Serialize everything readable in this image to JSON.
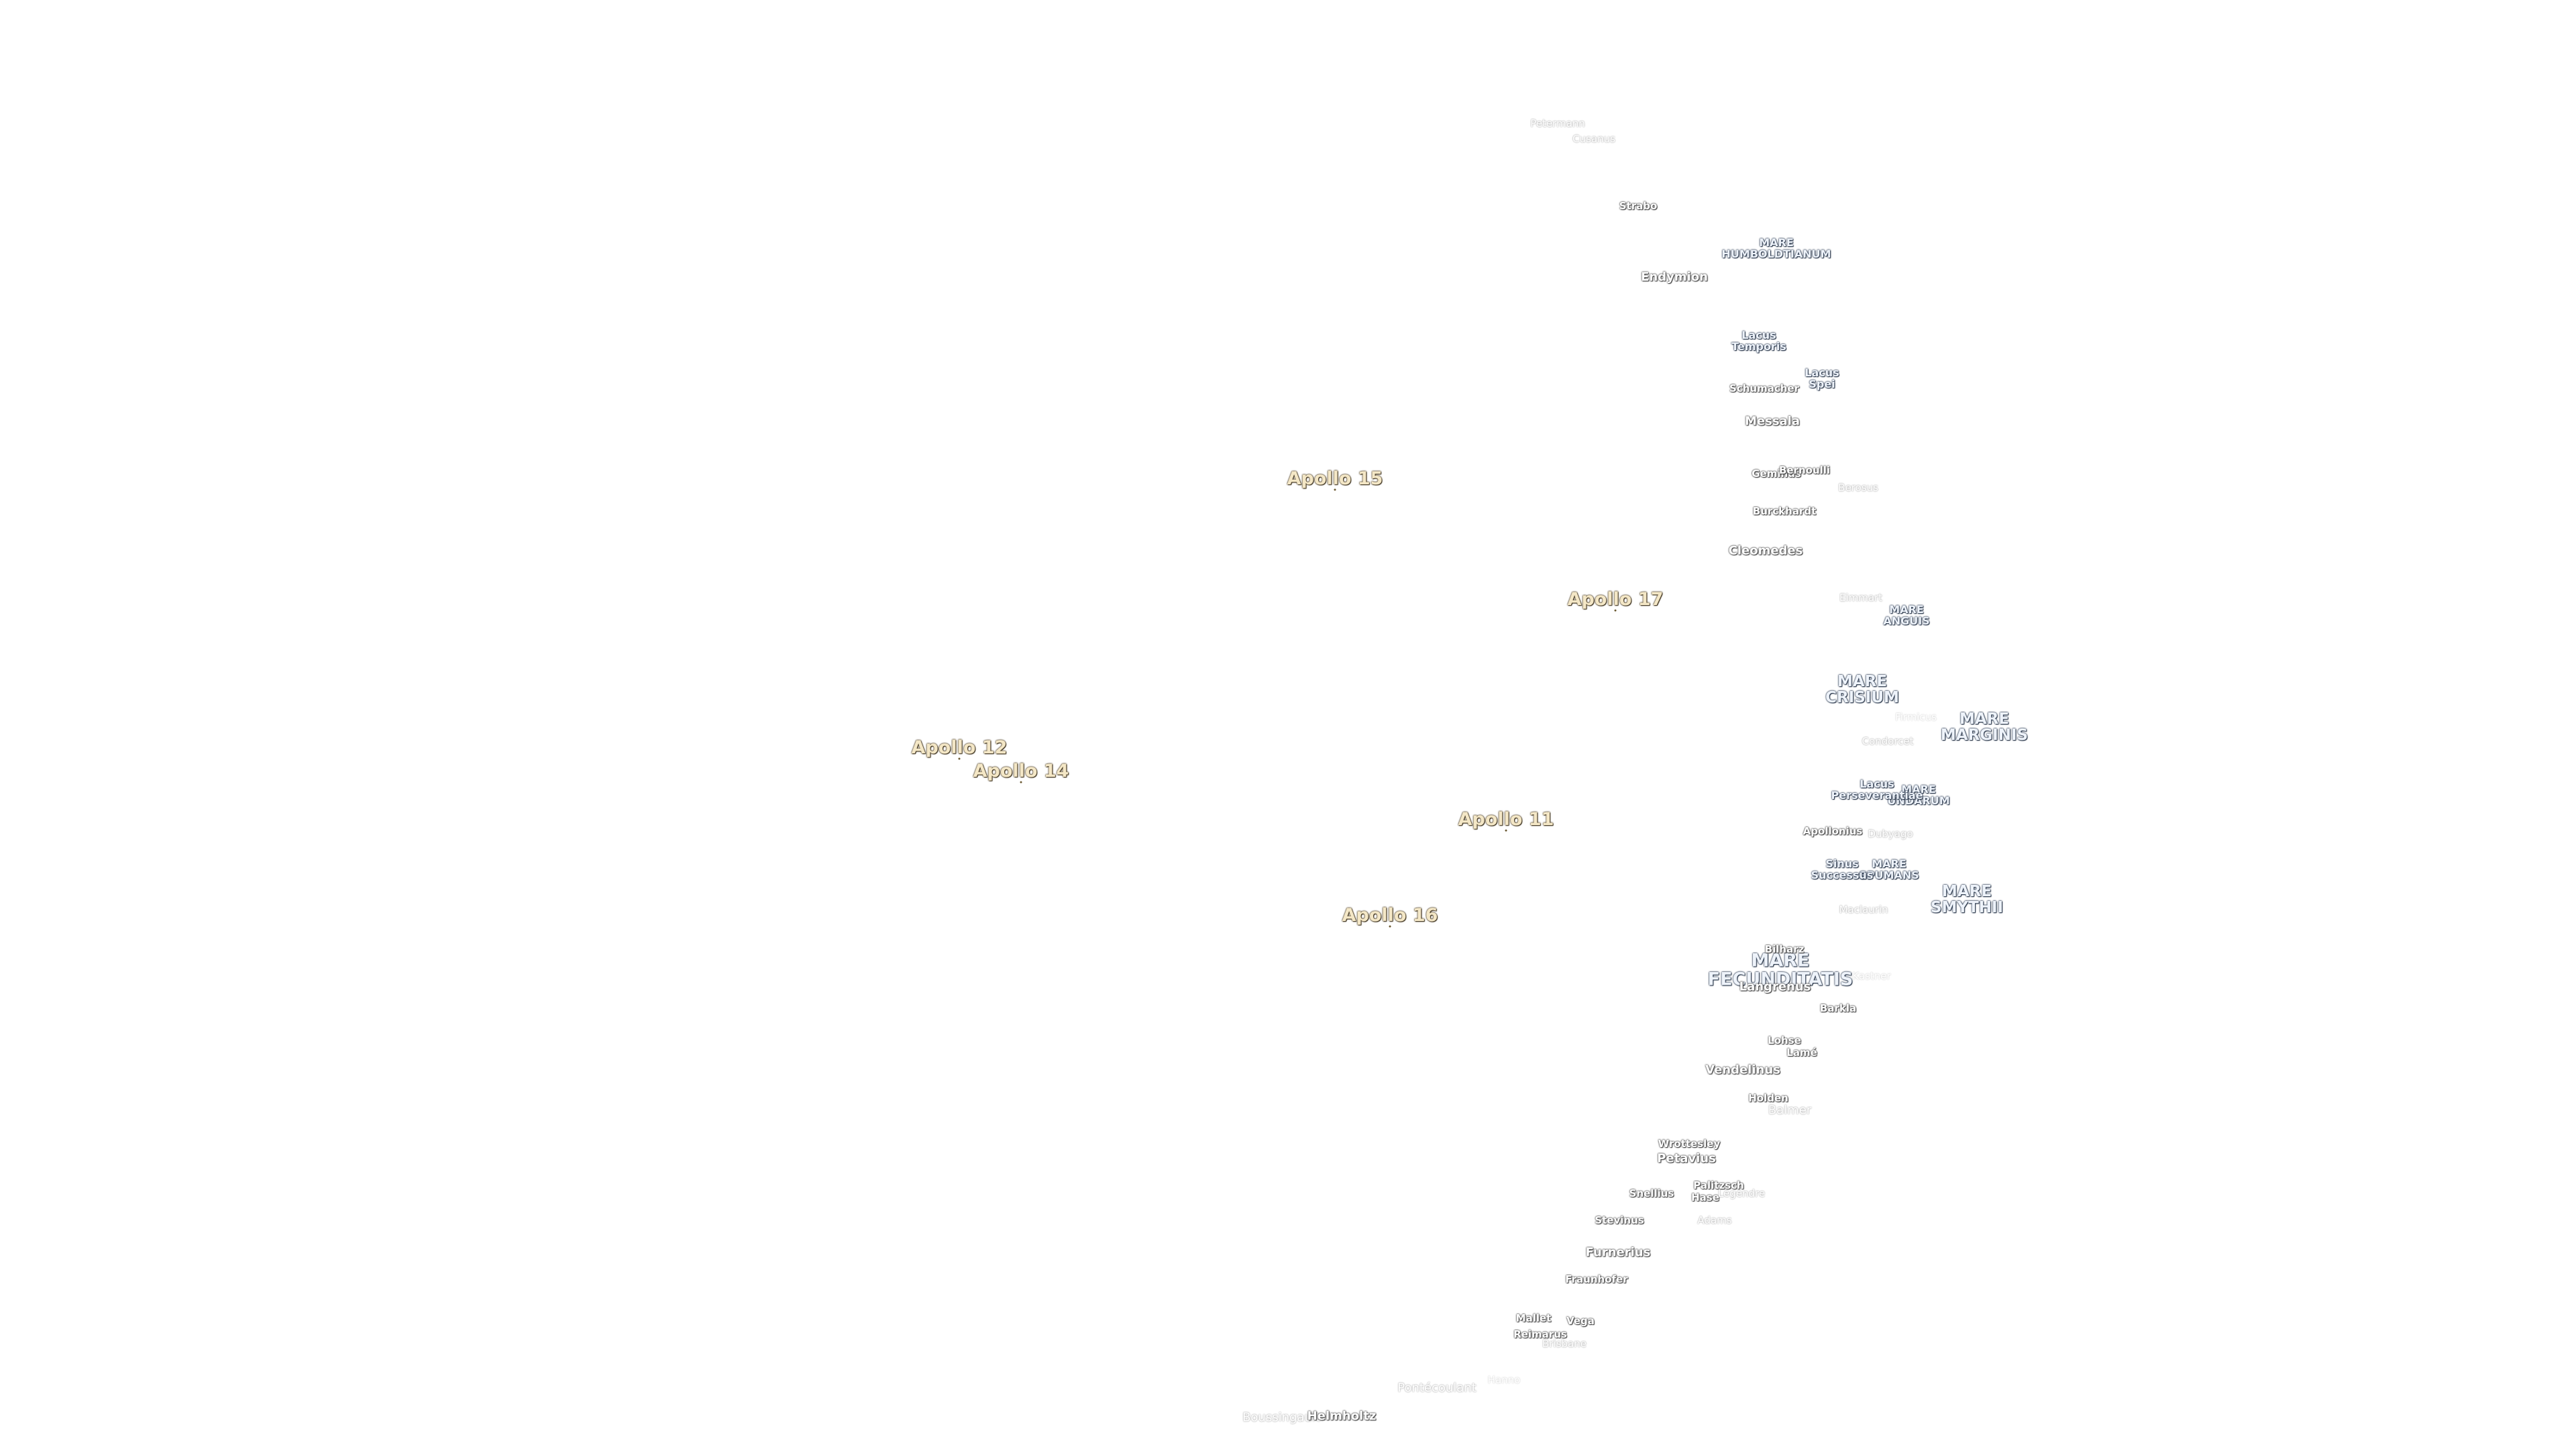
{
  "apollo_sites": [
    "Apollo 15",
    "Apollo 17",
    "Apollo 12",
    "Apollo 14",
    "Apollo 11",
    "Apollo 16"
  ],
  "maria": {
    "humboldtianum": "MARE\nHUMBOLDTIANUM",
    "anguis": "MARE\nANGUIS",
    "crisium": "MARE\nCRISIUM",
    "marginis": "MARE\nMARGINIS",
    "undarum": "MARE\nUNDARUM",
    "spumans": "MARE\nSPUMANS",
    "smythii": "MARE\nSMYTHII",
    "fecunditatis": "MARE\nFECUNDITATIS",
    "lacus_temporis": "Lacus\nTemporis",
    "lacus_spei": "Lacus\nSpei",
    "lacus_perseverantiae": "Lacus\nPerseverantiae",
    "sinus_successus": "Sinus\nSuccessus"
  },
  "craters": {
    "petermann": "Petermann",
    "cusanus": "Cusanus",
    "strabo": "Strabo",
    "endymion": "Endymion",
    "schumacher": "Schumacher",
    "messala": "Messala",
    "geminus": "Geminus",
    "bernoulli": "Bernoulli",
    "berosus": "Berosus",
    "burckhardt": "Burckhardt",
    "cleomedes": "Cleomedes",
    "eimmart": "Eimmart",
    "condorcet": "Condorcet",
    "firmicus": "Firmicus",
    "apollonius": "Apollonius",
    "dubyago": "Dubyago",
    "maclaurin": "Maclaurin",
    "bilharz": "Bilharz",
    "langrenus": "Langrenus",
    "kastner": "Kastner",
    "barkla": "Barkla",
    "lohse": "Lohse",
    "lame": "Lamé",
    "vendelinus": "Vendelinus",
    "holden": "Holden",
    "balmer": "Balmer",
    "wrottesley": "Wrottesley",
    "petavius": "Petavius",
    "snellius": "Snellius",
    "palitzsch": "Palitzsch",
    "hase": "Hase",
    "legendre": "Legendre",
    "stevinus": "Stevinus",
    "adams": "Adams",
    "furnerius": "Furnerius",
    "fraunhofer": "Fraunhofer",
    "mallet": "Mallet",
    "vega": "Vega",
    "reimarus": "Reimarus",
    "brisbane": "Brisbane",
    "pontecoulant": "Pontécoulant",
    "hanno": "Hanno",
    "boussingault": "Boussingault",
    "helmholtz": "Helmholtz"
  }
}
